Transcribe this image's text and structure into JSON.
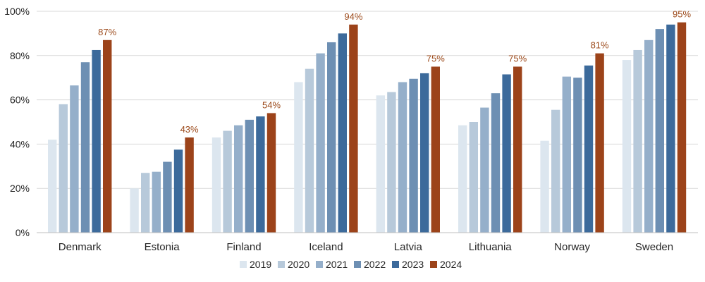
{
  "chart_data": {
    "type": "bar",
    "categories": [
      "Denmark",
      "Estonia",
      "Finland",
      "Iceland",
      "Latvia",
      "Lithuania",
      "Norway",
      "Sweden"
    ],
    "series": [
      {
        "name": "2019",
        "color": "#DCE6EF",
        "values": [
          42,
          20,
          43,
          68,
          62,
          48.5,
          41.5,
          78
        ]
      },
      {
        "name": "2020",
        "color": "#B7C9DA",
        "values": [
          58,
          27,
          46,
          74,
          63.5,
          50,
          55.5,
          82.5
        ]
      },
      {
        "name": "2021",
        "color": "#95AFCA",
        "values": [
          66.5,
          27.5,
          48.5,
          81,
          68,
          56.5,
          70.5,
          87
        ]
      },
      {
        "name": "2022",
        "color": "#6D8FB3",
        "values": [
          77,
          32,
          51,
          86,
          69.5,
          63,
          70,
          92
        ]
      },
      {
        "name": "2023",
        "color": "#3C6A9B",
        "values": [
          82.5,
          37.5,
          52.5,
          90,
          72,
          71.5,
          75.5,
          94
        ]
      },
      {
        "name": "2024",
        "color": "#9C431A",
        "values": [
          87,
          43,
          54,
          94,
          75,
          75,
          81,
          95
        ]
      }
    ],
    "data_labels": [
      "87%",
      "43%",
      "54%",
      "94%",
      "75%",
      "75%",
      "81%",
      "95%"
    ],
    "ylim": [
      0,
      100
    ],
    "yticks": [
      "0%",
      "20%",
      "40%",
      "60%",
      "80%",
      "100%"
    ],
    "ytick_values": [
      0,
      20,
      40,
      60,
      80,
      100
    ],
    "grid": true,
    "legend_position": "bottom",
    "title": "",
    "xlabel": "",
    "ylabel": ""
  }
}
